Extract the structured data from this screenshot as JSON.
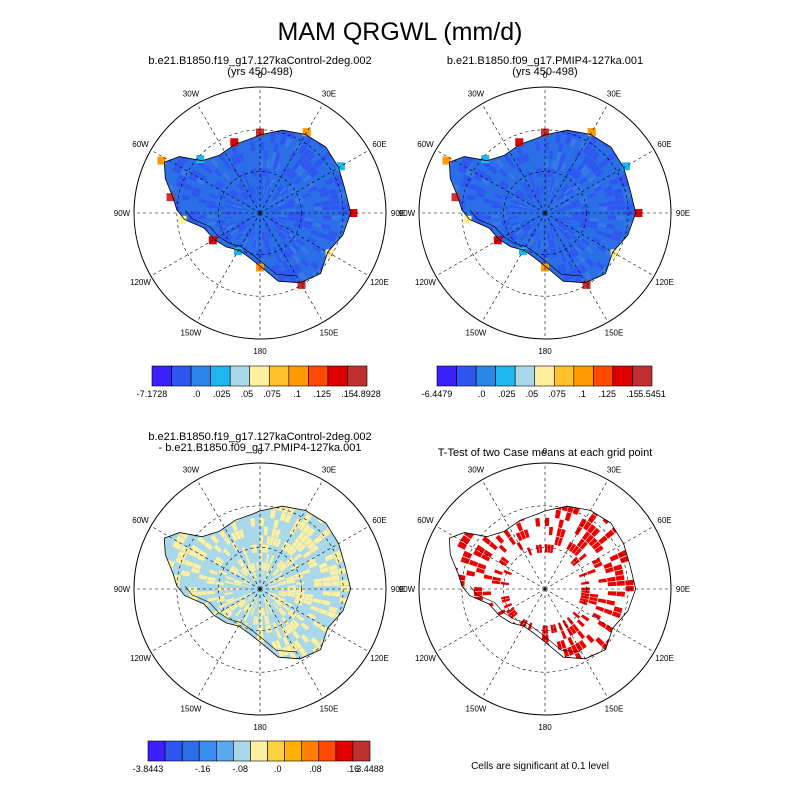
{
  "title": "MAM QRGWL (mm/d)",
  "panels": {
    "top_left": {
      "line1": "b.e21.B1850.f19_g17.127kaControl-2deg.002",
      "line2": "(yrs 450-498)"
    },
    "top_right": {
      "line1": "b.e21.B1850.f09_g17.PMIP4-127ka.001",
      "line2": "(yrs 450-498)"
    },
    "bottom_left": {
      "line1": "b.e21.B1850.f19_g17.127kaControl-2deg.002",
      "line2": "- b.e21.B1850.f09_g17.PMIP4-127ka.001"
    },
    "bottom_right": {
      "line1": "T-Test of two Case means at each grid point",
      "note": "Cells are significant at 0.1 level"
    }
  },
  "map_labels": {
    "n": "0",
    "s": "180",
    "e": "90E",
    "w": "90W",
    "ne1": "30E",
    "ne2": "60E",
    "se1": "120E",
    "se2": "150E",
    "nw1": "30W",
    "nw2": "60W",
    "sw1": "120W",
    "sw2": "150W"
  },
  "colorbars": {
    "top_left": {
      "colors": [
        "#3a1fff",
        "#2f56f0",
        "#2a86e8",
        "#1fb6f0",
        "#a8d8ea",
        "#fff0a0",
        "#ffc02a",
        "#ff9a00",
        "#ff4a00",
        "#e00000",
        "#c03030"
      ],
      "labels": [
        "-7.1728",
        ".0",
        ".025",
        ".05",
        ".075",
        ".1",
        ".125",
        ".15",
        "4.8928"
      ]
    },
    "top_right": {
      "colors": [
        "#3a1fff",
        "#2f56f0",
        "#2a86e8",
        "#1fb6f0",
        "#a8d8ea",
        "#fff0a0",
        "#ffc02a",
        "#ff9a00",
        "#ff4a00",
        "#e00000",
        "#c03030"
      ],
      "labels": [
        "-6.4479",
        ".0",
        ".025",
        ".05",
        ".075",
        ".1",
        ".125",
        ".15",
        "5.5451"
      ]
    },
    "bottom_left": {
      "colors": [
        "#3a1fff",
        "#2f56f0",
        "#2a6ee8",
        "#3a8ef0",
        "#5aa8f0",
        "#a8d8ea",
        "#fff0a0",
        "#ffd040",
        "#ffb000",
        "#ff8000",
        "#ff4a00",
        "#e00000",
        "#c03030"
      ],
      "labels": [
        "-3.8443",
        "-.16",
        "-.08",
        ".0",
        ".08",
        ".16",
        "3.4488"
      ]
    }
  },
  "colors": {
    "land": "#2a6ee8",
    "edge_red": "#d03030",
    "diff_fill": "#a8d8ea",
    "diff_yellow": "#fff0a0",
    "ttest": "#ee0000"
  }
}
